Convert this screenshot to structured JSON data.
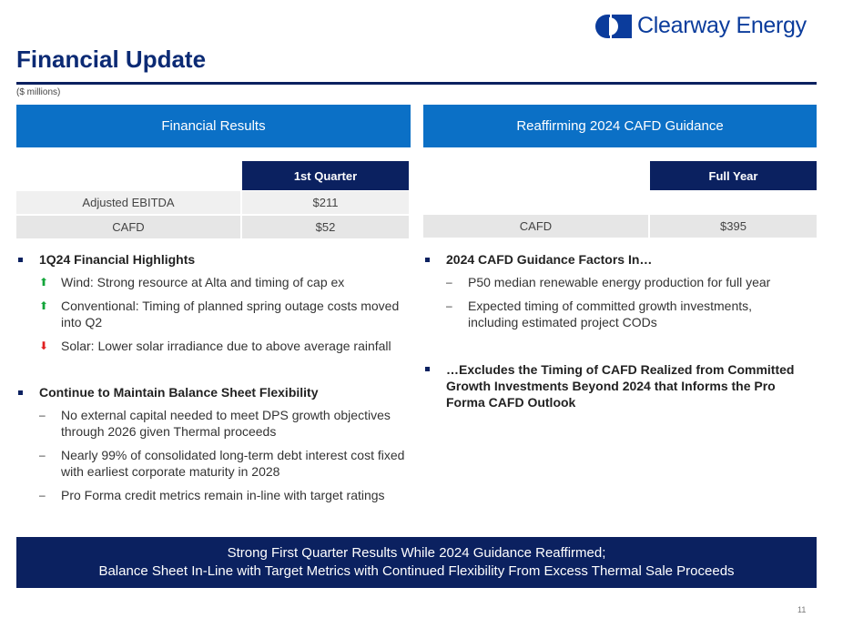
{
  "logo": {
    "text": "Clearway Energy"
  },
  "title": "Financial Update",
  "units": "($ millions)",
  "left": {
    "header": "Financial Results",
    "table": {
      "column": "1st Quarter",
      "rows": [
        {
          "label": "Adjusted EBITDA",
          "value": "$211"
        },
        {
          "label": "CAFD",
          "value": "$52"
        }
      ]
    },
    "sections": [
      {
        "heading": "1Q24 Financial Highlights",
        "items": [
          {
            "icon": "arrow-up",
            "text": "Wind: Strong resource at Alta and timing of cap ex"
          },
          {
            "icon": "arrow-up",
            "text": "Conventional: Timing of planned spring outage costs moved into Q2"
          },
          {
            "icon": "arrow-down",
            "text": "Solar: Lower solar irradiance due to above average rainfall"
          }
        ]
      },
      {
        "heading": "Continue to Maintain Balance Sheet Flexibility",
        "items": [
          {
            "icon": "dash",
            "text": "No external capital needed to meet DPS growth objectives through 2026 given Thermal proceeds"
          },
          {
            "icon": "dash",
            "text": "Nearly 99% of consolidated long-term debt interest cost fixed with earliest corporate maturity in 2028"
          },
          {
            "icon": "dash",
            "text": "Pro Forma credit metrics remain in-line with target ratings"
          }
        ]
      }
    ]
  },
  "right": {
    "header": "Reaffirming 2024 CAFD Guidance",
    "table": {
      "column": "Full Year",
      "rows": [
        {
          "label": "CAFD",
          "value": "$395"
        }
      ]
    },
    "sections": [
      {
        "heading": "2024 CAFD Guidance Factors In…",
        "items": [
          {
            "icon": "dash",
            "text": "P50 median renewable energy production for full year"
          },
          {
            "icon": "dash",
            "text": "Expected timing of committed growth investments, including estimated project CODs"
          }
        ]
      },
      {
        "heading": " …Excludes the Timing of CAFD Realized from Committed Growth Investments Beyond 2024 that Informs the Pro Forma CAFD Outlook",
        "items": []
      }
    ]
  },
  "banner": {
    "line1": "Strong First Quarter Results While 2024 Guidance Reaffirmed;",
    "line2": "Balance Sheet In-Line with Target Metrics with Continued Flexibility From Excess Thermal Sale Proceeds"
  },
  "page_number": "11"
}
